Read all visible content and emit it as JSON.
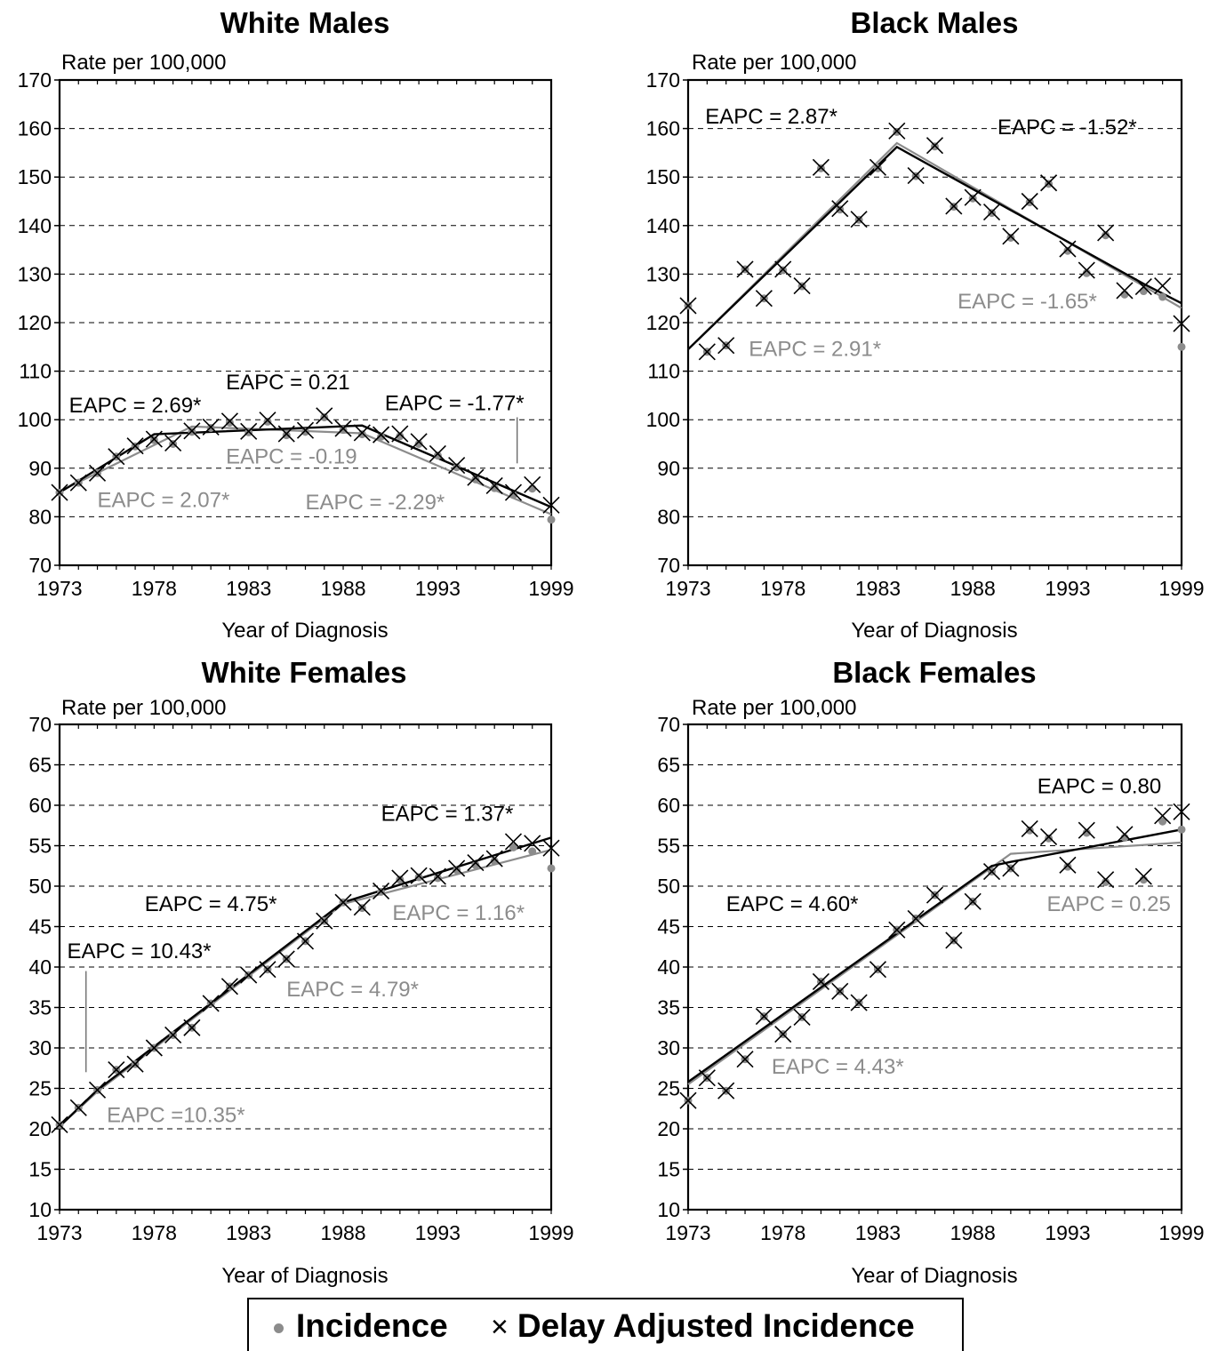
{
  "legend": {
    "incidence_label": "Incidence",
    "delay_label": "Delay Adjusted Incidence",
    "incidence_color": "#8c8c8c",
    "delay_color": "#000000"
  },
  "chart_data": [
    {
      "type": "scatter",
      "title": "White Males",
      "ylabel": "Rate per 100,000",
      "xlabel": "Year of Diagnosis",
      "xlim": [
        1973,
        1999
      ],
      "ylim": [
        70,
        170
      ],
      "xticks": [
        1973,
        1978,
        1983,
        1988,
        1993,
        1999
      ],
      "yticks": [
        70,
        80,
        90,
        100,
        110,
        120,
        130,
        140,
        150,
        160,
        170
      ],
      "grid": "horizontal dashed",
      "x": [
        1973,
        1974,
        1975,
        1976,
        1977,
        1978,
        1979,
        1980,
        1981,
        1982,
        1983,
        1984,
        1985,
        1986,
        1987,
        1988,
        1989,
        1990,
        1991,
        1992,
        1993,
        1994,
        1995,
        1996,
        1997,
        1998,
        1999
      ],
      "series": [
        {
          "name": "Incidence",
          "marker": "dot",
          "color": "#8c8c8c",
          "values": [
            85.0,
            87.0,
            89.0,
            92.4,
            94.5,
            95.8,
            95.0,
            97.5,
            98.3,
            99.4,
            97.4,
            99.6,
            96.8,
            97.5,
            100.5,
            97.9,
            97.0,
            96.5,
            96.6,
            95.0,
            92.6,
            90.2,
            87.7,
            85.9,
            84.5,
            85.8,
            79.4
          ]
        },
        {
          "name": "Delay Adjusted Incidence",
          "marker": "x",
          "color": "#000000",
          "values": [
            85.0,
            87.0,
            89.0,
            92.4,
            94.6,
            96.0,
            95.2,
            97.7,
            98.5,
            99.7,
            97.6,
            99.9,
            97.1,
            97.8,
            100.8,
            98.2,
            97.3,
            96.9,
            97.1,
            95.5,
            93.0,
            90.6,
            88.1,
            86.4,
            85.0,
            86.6,
            82.4
          ]
        }
      ],
      "trends": [
        {
          "color": "#000000",
          "points": [
            [
              1973,
              85.0
            ],
            [
              1978,
              97.0
            ],
            [
              1989,
              98.8
            ],
            [
              1999,
              82.0
            ]
          ]
        },
        {
          "color": "#8c8c8c",
          "points": [
            [
              1973,
              85.2
            ],
            [
              1980,
              98.6
            ],
            [
              1989,
              97.2
            ],
            [
              1999,
              80.5
            ]
          ]
        }
      ],
      "annotations": [
        {
          "text": "EAPC = 2.69*",
          "color": "#000000",
          "x": 1973.5,
          "y": 101.5
        },
        {
          "text": "EAPC = 0.21",
          "color": "#000000",
          "x": 1981.8,
          "y": 106.3
        },
        {
          "text": "EAPC = -1.77*",
          "color": "#000000",
          "x": 1990.2,
          "y": 102.0
        },
        {
          "text": "EAPC = -0.19",
          "color": "#8c8c8c",
          "x": 1981.8,
          "y": 91.0
        },
        {
          "text": "EAPC = 2.07*",
          "color": "#8c8c8c",
          "x": 1975.0,
          "y": 82.0
        },
        {
          "text": "EAPC = -2.29*",
          "color": "#8c8c8c",
          "x": 1986.0,
          "y": 81.5
        }
      ],
      "leaders": [
        {
          "points": [
            [
              1997.2,
              100.5
            ],
            [
              1997.2,
              91.0
            ]
          ]
        }
      ]
    },
    {
      "type": "scatter",
      "title": "Black Males",
      "ylabel": "Rate per 100,000",
      "xlabel": "Year of Diagnosis",
      "xlim": [
        1973,
        1999
      ],
      "ylim": [
        70,
        170
      ],
      "xticks": [
        1973,
        1978,
        1983,
        1988,
        1993,
        1999
      ],
      "yticks": [
        70,
        80,
        90,
        100,
        110,
        120,
        130,
        140,
        150,
        160,
        170
      ],
      "grid": "horizontal dashed",
      "x": [
        1973,
        1974,
        1975,
        1976,
        1977,
        1978,
        1979,
        1980,
        1981,
        1982,
        1983,
        1984,
        1985,
        1986,
        1987,
        1988,
        1989,
        1990,
        1991,
        1992,
        1993,
        1994,
        1995,
        1996,
        1997,
        1998,
        1999
      ],
      "series": [
        {
          "name": "Incidence",
          "marker": "dot",
          "color": "#8c8c8c",
          "values": [
            123.5,
            114.0,
            115.3,
            131.0,
            125.0,
            130.8,
            127.5,
            151.8,
            143.3,
            141.2,
            151.8,
            159.3,
            150.2,
            156.3,
            143.9,
            145.6,
            142.6,
            137.5,
            144.8,
            148.6,
            134.8,
            130.2,
            138.0,
            125.8,
            126.5,
            125.3,
            115.0
          ]
        },
        {
          "name": "Delay Adjusted Incidence",
          "marker": "x",
          "color": "#000000",
          "values": [
            123.5,
            114.0,
            115.3,
            131.0,
            125.0,
            131.0,
            127.6,
            152.0,
            143.5,
            141.3,
            152.0,
            159.5,
            150.3,
            156.5,
            144.0,
            145.8,
            142.8,
            137.8,
            145.0,
            148.8,
            135.2,
            130.8,
            138.5,
            126.6,
            127.4,
            127.6,
            119.8
          ]
        }
      ],
      "trends": [
        {
          "color": "#000000",
          "points": [
            [
              1973,
              114.5
            ],
            [
              1984,
              156.2
            ],
            [
              1997,
              128.0
            ],
            [
              1999,
              124.0
            ]
          ]
        },
        {
          "color": "#8c8c8c",
          "points": [
            [
              1973,
              114.5
            ],
            [
              1984,
              157.0
            ],
            [
              1999,
              123.0
            ]
          ]
        }
      ],
      "annotations": [
        {
          "text": "EAPC = 2.87*",
          "color": "#000000",
          "x": 1973.9,
          "y": 161.0
        },
        {
          "text": "EAPC = -1.52*",
          "color": "#000000",
          "x": 1989.3,
          "y": 158.8
        },
        {
          "text": "EAPC = -1.65*",
          "color": "#8c8c8c",
          "x": 1987.2,
          "y": 122.9
        },
        {
          "text": "EAPC = 2.91*",
          "color": "#8c8c8c",
          "x": 1976.2,
          "y": 113.1
        }
      ],
      "leaders": []
    },
    {
      "type": "scatter",
      "title": "White Females",
      "ylabel": "Rate per 100,000",
      "xlabel": "Year of Diagnosis",
      "xlim": [
        1973,
        1999
      ],
      "ylim": [
        10,
        70
      ],
      "xticks": [
        1973,
        1978,
        1983,
        1988,
        1993,
        1999
      ],
      "yticks": [
        10,
        15,
        20,
        25,
        30,
        35,
        40,
        45,
        50,
        55,
        60,
        65,
        70
      ],
      "grid": "horizontal dashed",
      "x": [
        1973,
        1974,
        1975,
        1976,
        1977,
        1978,
        1979,
        1980,
        1981,
        1982,
        1983,
        1984,
        1985,
        1986,
        1987,
        1988,
        1989,
        1990,
        1991,
        1992,
        1993,
        1994,
        1995,
        1996,
        1997,
        1998,
        1999
      ],
      "series": [
        {
          "name": "Incidence",
          "marker": "dot",
          "color": "#8c8c8c",
          "values": [
            20.5,
            22.6,
            24.8,
            27.3,
            28.0,
            30.0,
            31.6,
            32.5,
            35.5,
            37.6,
            39.0,
            39.7,
            41.0,
            43.2,
            45.7,
            48.0,
            47.3,
            49.3,
            50.8,
            51.1,
            51.0,
            52.0,
            52.6,
            53.1,
            54.8,
            54.3,
            52.2
          ]
        },
        {
          "name": "Delay Adjusted Incidence",
          "marker": "x",
          "color": "#000000",
          "values": [
            20.5,
            22.6,
            24.8,
            27.3,
            28.0,
            30.0,
            31.6,
            32.5,
            35.5,
            37.6,
            39.0,
            39.7,
            41.0,
            43.2,
            45.7,
            48.0,
            47.4,
            49.4,
            51.0,
            51.3,
            51.2,
            52.2,
            52.9,
            53.4,
            55.5,
            55.3,
            54.7
          ]
        }
      ],
      "trends": [
        {
          "color": "#000000",
          "points": [
            [
              1973,
              20.3
            ],
            [
              1975,
              24.8
            ],
            [
              1988,
              48.0
            ],
            [
              1999,
              56.0
            ]
          ]
        },
        {
          "color": "#8c8c8c",
          "points": [
            [
              1973,
              20.3
            ],
            [
              1975,
              24.6
            ],
            [
              1988,
              47.8
            ],
            [
              1999,
              54.5
            ]
          ]
        }
      ],
      "annotations": [
        {
          "text": "EAPC = 1.37*",
          "color": "#000000",
          "x": 1990.0,
          "y": 58.1
        },
        {
          "text": "EAPC = 4.75*",
          "color": "#000000",
          "x": 1977.5,
          "y": 46.9
        },
        {
          "text": "EAPC = 10.43*",
          "color": "#000000",
          "x": 1973.4,
          "y": 41.1
        },
        {
          "text": "EAPC = 1.16*",
          "color": "#8c8c8c",
          "x": 1990.6,
          "y": 45.8
        },
        {
          "text": "EAPC = 4.79*",
          "color": "#8c8c8c",
          "x": 1985.0,
          "y": 36.4
        },
        {
          "text": "EAPC =10.35*",
          "color": "#8c8c8c",
          "x": 1975.5,
          "y": 20.8
        }
      ],
      "leaders": [
        {
          "points": [
            [
              1974.4,
              39.5
            ],
            [
              1974.4,
              27.0
            ]
          ]
        }
      ]
    },
    {
      "type": "scatter",
      "title": "Black Females",
      "ylabel": "Rate per 100,000",
      "xlabel": "Year of Diagnosis",
      "xlim": [
        1973,
        1999
      ],
      "ylim": [
        10,
        70
      ],
      "xticks": [
        1973,
        1978,
        1983,
        1988,
        1993,
        1999
      ],
      "yticks": [
        10,
        15,
        20,
        25,
        30,
        35,
        40,
        45,
        50,
        55,
        60,
        65,
        70
      ],
      "grid": "horizontal dashed",
      "x": [
        1973,
        1974,
        1975,
        1976,
        1977,
        1978,
        1979,
        1980,
        1981,
        1982,
        1983,
        1984,
        1985,
        1986,
        1987,
        1988,
        1989,
        1990,
        1991,
        1992,
        1993,
        1994,
        1995,
        1996,
        1997,
        1998,
        1999
      ],
      "series": [
        {
          "name": "Incidence",
          "marker": "dot",
          "color": "#8c8c8c",
          "values": [
            23.5,
            26.3,
            24.7,
            28.6,
            33.9,
            31.7,
            33.8,
            38.2,
            37.0,
            35.6,
            39.7,
            44.6,
            46.0,
            48.9,
            43.3,
            48.1,
            51.8,
            52.2,
            56.9,
            55.9,
            52.4,
            56.6,
            50.5,
            56.0,
            50.8,
            58.0,
            57.0
          ]
        },
        {
          "name": "Delay Adjusted Incidence",
          "marker": "x",
          "color": "#000000",
          "values": [
            23.5,
            26.3,
            24.7,
            28.6,
            33.9,
            31.7,
            33.8,
            38.2,
            37.0,
            35.6,
            39.7,
            44.6,
            46.0,
            48.9,
            43.3,
            48.1,
            51.8,
            52.2,
            57.1,
            56.1,
            52.6,
            56.9,
            50.8,
            56.4,
            51.2,
            58.7,
            59.2
          ]
        }
      ],
      "trends": [
        {
          "color": "#000000",
          "points": [
            [
              1973,
              25.8
            ],
            [
              1989,
              52.5
            ],
            [
              1990,
              53.0
            ],
            [
              1999,
              57.0
            ]
          ]
        },
        {
          "color": "#8c8c8c",
          "points": [
            [
              1973,
              25.5
            ],
            [
              1990,
              54.0
            ],
            [
              1999,
              55.4
            ]
          ]
        }
      ],
      "annotations": [
        {
          "text": "EAPC = 0.80",
          "color": "#000000",
          "x": 1991.4,
          "y": 61.5
        },
        {
          "text": "EAPC = 4.60*",
          "color": "#000000",
          "x": 1975.0,
          "y": 46.9
        },
        {
          "text": "EAPC = 0.25",
          "color": "#8c8c8c",
          "x": 1991.9,
          "y": 46.9
        },
        {
          "text": "EAPC = 4.43*",
          "color": "#8c8c8c",
          "x": 1977.4,
          "y": 26.8
        }
      ],
      "leaders": []
    }
  ]
}
